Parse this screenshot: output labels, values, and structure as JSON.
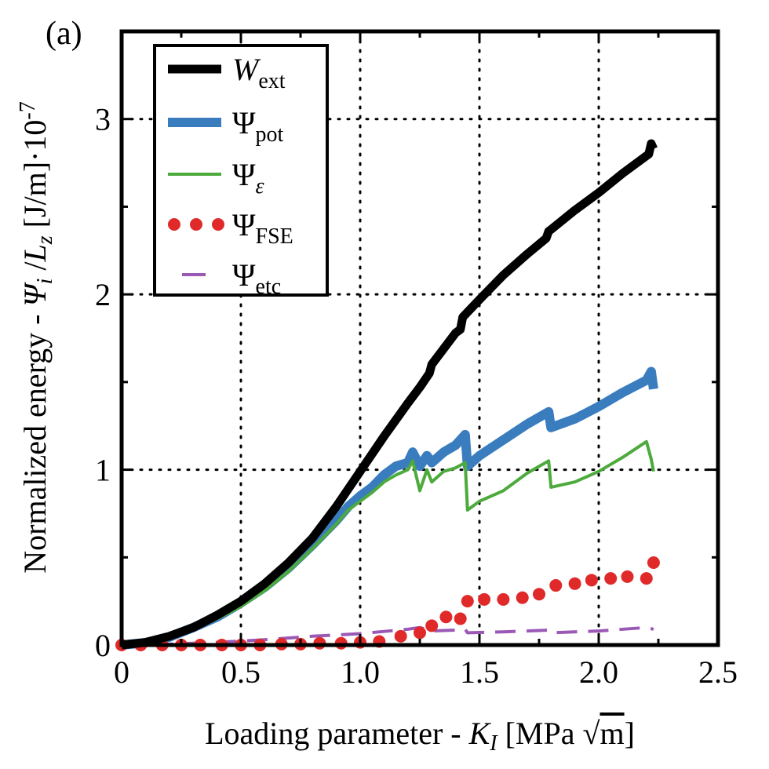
{
  "panel_label": "(a)",
  "chart_data": {
    "type": "line",
    "xlabel": "Loading parameter - K_I [MPa √m]",
    "ylabel": "Normalized energy - Ψ_i / L_z [J/m]·10^-7",
    "xlim": [
      0,
      2.5
    ],
    "ylim": [
      0,
      3.5
    ],
    "xticks": [
      0,
      0.5,
      1.0,
      1.5,
      2.0,
      2.5
    ],
    "xtick_labels": [
      "0",
      "0.5",
      "1.0",
      "1.5",
      "2.0",
      "2.5"
    ],
    "yticks": [
      0,
      1,
      2,
      3
    ],
    "ytick_labels": [
      "0",
      "1",
      "2",
      "3"
    ],
    "grid": true,
    "legend_position": "top-left",
    "series": [
      {
        "name": "W_ext",
        "label_main": "W",
        "label_sub": "ext",
        "color": "#000000",
        "style": "thick-solid",
        "x": [
          0,
          0.1,
          0.2,
          0.3,
          0.4,
          0.5,
          0.6,
          0.7,
          0.8,
          0.9,
          1.0,
          1.1,
          1.2,
          1.25,
          1.29,
          1.3,
          1.4,
          1.42,
          1.43,
          1.5,
          1.6,
          1.7,
          1.78,
          1.79,
          1.8,
          1.9,
          2.0,
          2.1,
          2.2,
          2.21,
          2.22,
          2.23
        ],
        "y": [
          0,
          0.015,
          0.05,
          0.1,
          0.17,
          0.25,
          0.35,
          0.47,
          0.61,
          0.79,
          0.99,
          1.19,
          1.38,
          1.47,
          1.55,
          1.6,
          1.78,
          1.8,
          1.87,
          1.97,
          2.11,
          2.23,
          2.32,
          2.36,
          2.37,
          2.48,
          2.58,
          2.69,
          2.79,
          2.8,
          2.86,
          2.83
        ]
      },
      {
        "name": "Ψ_pot",
        "label_main": "Ψ",
        "label_sub": "pot",
        "color": "#3a7dbf",
        "style": "thick-solid",
        "x": [
          0,
          0.1,
          0.2,
          0.3,
          0.4,
          0.5,
          0.6,
          0.7,
          0.8,
          0.9,
          0.95,
          1.0,
          1.05,
          1.1,
          1.15,
          1.2,
          1.22,
          1.25,
          1.28,
          1.3,
          1.35,
          1.4,
          1.44,
          1.45,
          1.5,
          1.6,
          1.7,
          1.79,
          1.8,
          1.9,
          2.0,
          2.1,
          2.2,
          2.22,
          2.23
        ],
        "y": [
          0,
          0.013,
          0.045,
          0.1,
          0.16,
          0.24,
          0.33,
          0.44,
          0.57,
          0.71,
          0.79,
          0.85,
          0.9,
          0.97,
          1.02,
          1.04,
          1.1,
          1.02,
          1.08,
          1.04,
          1.1,
          1.14,
          1.2,
          1.02,
          1.08,
          1.17,
          1.26,
          1.33,
          1.24,
          1.29,
          1.36,
          1.44,
          1.51,
          1.56,
          1.46
        ]
      },
      {
        "name": "Ψ_ε",
        "label_main": "Ψ",
        "label_sub": "ε",
        "color": "#4daa3c",
        "style": "thin-solid",
        "x": [
          0,
          0.1,
          0.2,
          0.3,
          0.4,
          0.5,
          0.6,
          0.7,
          0.8,
          0.9,
          0.95,
          1.0,
          1.05,
          1.1,
          1.15,
          1.2,
          1.22,
          1.25,
          1.28,
          1.3,
          1.35,
          1.4,
          1.44,
          1.45,
          1.5,
          1.6,
          1.7,
          1.79,
          1.8,
          1.9,
          2.0,
          2.1,
          2.2,
          2.22,
          2.23
        ],
        "y": [
          0,
          0.012,
          0.04,
          0.09,
          0.15,
          0.22,
          0.31,
          0.42,
          0.55,
          0.69,
          0.77,
          0.82,
          0.87,
          0.93,
          0.97,
          1.0,
          1.05,
          0.88,
          1.0,
          0.93,
          0.99,
          1.01,
          1.04,
          0.77,
          0.82,
          0.88,
          0.98,
          1.05,
          0.9,
          0.93,
          0.99,
          1.07,
          1.16,
          1.06,
          0.99
        ]
      },
      {
        "name": "Ψ_FSE",
        "label_main": "Ψ",
        "label_sub": "FSE",
        "color": "#e02a2a",
        "style": "dots",
        "x": [
          0.0,
          0.08,
          0.17,
          0.25,
          0.33,
          0.42,
          0.5,
          0.58,
          0.67,
          0.75,
          0.83,
          0.92,
          1.0,
          1.08,
          1.17,
          1.25,
          1.3,
          1.36,
          1.42,
          1.45,
          1.52,
          1.6,
          1.68,
          1.75,
          1.82,
          1.9,
          1.97,
          2.05,
          2.12,
          2.2,
          2.23
        ],
        "y": [
          0.0,
          0.0,
          0.0,
          0.0,
          0.0,
          0.0,
          0.0,
          0.0,
          0.005,
          0.005,
          0.01,
          0.01,
          0.015,
          0.02,
          0.05,
          0.07,
          0.11,
          0.16,
          0.15,
          0.25,
          0.26,
          0.26,
          0.27,
          0.29,
          0.34,
          0.35,
          0.37,
          0.38,
          0.39,
          0.38,
          0.47
        ]
      },
      {
        "name": "Ψ_etc",
        "label_main": "Ψ",
        "label_sub": "etc",
        "color": "#9b59b6",
        "style": "dashed",
        "x": [
          0,
          0.2,
          0.4,
          0.6,
          0.8,
          1.0,
          1.2,
          1.25,
          1.3,
          1.4,
          1.44,
          1.45,
          1.6,
          1.79,
          1.8,
          2.0,
          2.2,
          2.23
        ],
        "y": [
          0,
          0.005,
          0.015,
          0.03,
          0.05,
          0.065,
          0.09,
          0.1,
          0.08,
          0.085,
          0.09,
          0.07,
          0.075,
          0.085,
          0.07,
          0.08,
          0.1,
          0.09
        ]
      }
    ]
  }
}
